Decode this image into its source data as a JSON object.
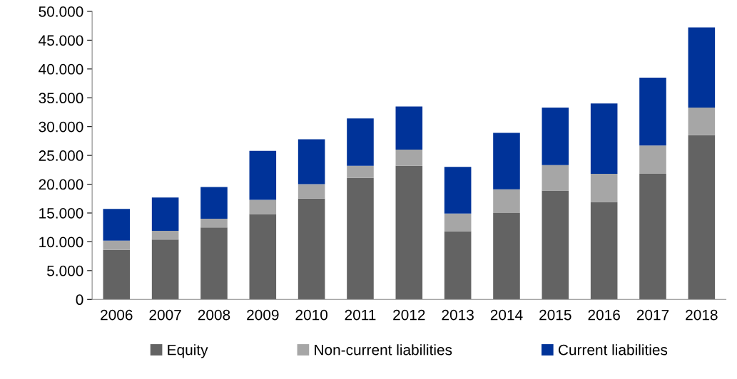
{
  "chart_data": {
    "type": "bar",
    "stacked": true,
    "categories": [
      "2006",
      "2007",
      "2008",
      "2009",
      "2010",
      "2011",
      "2012",
      "2013",
      "2014",
      "2015",
      "2016",
      "2017",
      "2018"
    ],
    "series": [
      {
        "name": "Equity",
        "color": "#636363",
        "values": [
          8600,
          10400,
          12500,
          14800,
          17500,
          21100,
          23200,
          11800,
          15000,
          18900,
          16900,
          21800,
          28500
        ]
      },
      {
        "name": "Non-current liabilities",
        "color": "#a6a6a6",
        "values": [
          1600,
          1500,
          1500,
          2500,
          2500,
          2100,
          2800,
          3100,
          4100,
          4400,
          4900,
          4900,
          4800
        ]
      },
      {
        "name": "Current liabilities",
        "color": "#003399",
        "values": [
          5500,
          5800,
          5500,
          8500,
          7800,
          8200,
          7500,
          8100,
          9800,
          10000,
          12200,
          11800,
          13900
        ]
      }
    ],
    "ylim": [
      0,
      50000
    ],
    "yticks": [
      0,
      {
        "value": 5000,
        "label": "5.000"
      },
      {
        "value": 10000,
        "label": "10.000"
      },
      {
        "value": 15000,
        "label": "15.000"
      },
      {
        "value": 20000,
        "label": "20.000"
      },
      {
        "value": 25000,
        "label": "25.000"
      },
      {
        "value": 30000,
        "label": "30.000"
      },
      {
        "value": 35000,
        "label": "35.000"
      },
      {
        "value": 40000,
        "label": "40.000"
      },
      {
        "value": 45000,
        "label": "45.000"
      },
      {
        "value": 50000,
        "label": "50.000"
      }
    ],
    "grid": false,
    "legend": "bottom"
  }
}
